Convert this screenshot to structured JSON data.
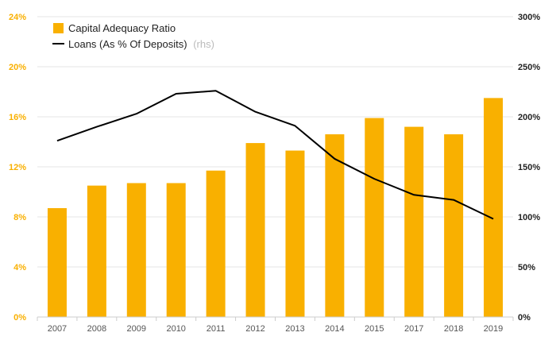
{
  "chart_data": {
    "type": "bar+line",
    "categories": [
      "2007",
      "2008",
      "2009",
      "2010",
      "2011",
      "2012",
      "2013",
      "2014",
      "2015",
      "2017",
      "2018",
      "2019"
    ],
    "series": [
      {
        "name": "Capital Adequacy Ratio",
        "type": "bar",
        "axis": "left",
        "color": "#F9B000",
        "values": [
          8.7,
          10.5,
          10.7,
          10.7,
          11.7,
          13.9,
          13.3,
          14.6,
          15.9,
          15.2,
          14.6,
          17.5
        ]
      },
      {
        "name": "Loans (As % Of Deposits)",
        "type": "line",
        "axis": "right",
        "color": "#000000",
        "values": [
          176,
          190,
          203,
          223,
          226,
          205,
          191,
          158,
          138,
          122,
          117,
          98
        ]
      }
    ],
    "legend": {
      "bar_label": "Capital Adequacy Ratio",
      "line_label": "Loans (As % Of Deposits)",
      "line_suffix": "(rhs)",
      "position": "top-left"
    },
    "left_axis": {
      "ticks": [
        "0%",
        "4%",
        "8%",
        "12%",
        "16%",
        "20%",
        "24%"
      ],
      "values": [
        0,
        4,
        8,
        12,
        16,
        20,
        24
      ],
      "range": [
        0,
        24
      ],
      "color": "#F9B000"
    },
    "right_axis": {
      "ticks": [
        "0%",
        "50%",
        "100%",
        "150%",
        "200%",
        "250%",
        "300%"
      ],
      "values": [
        0,
        50,
        100,
        150,
        200,
        250,
        300
      ],
      "range": [
        0,
        300
      ],
      "color": "#222222"
    },
    "grid": true,
    "title": "",
    "xlabel": "",
    "ylabel": ""
  }
}
